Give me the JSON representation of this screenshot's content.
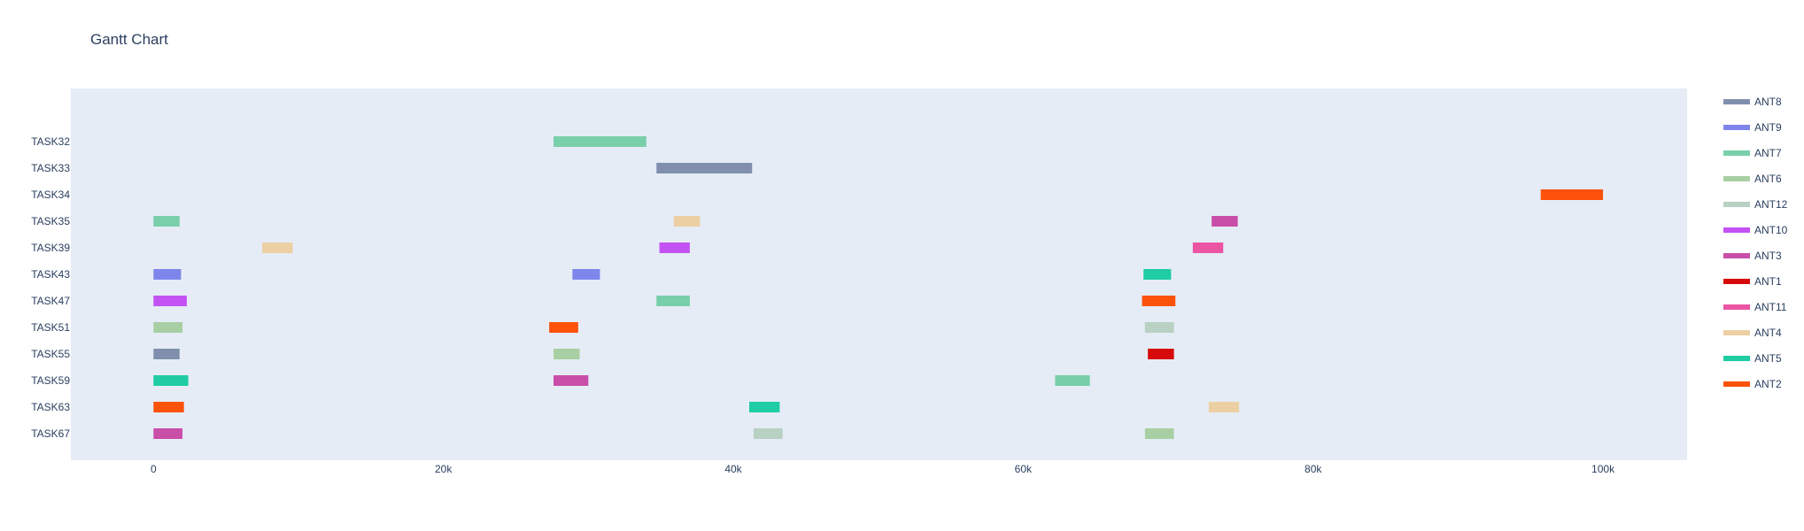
{
  "chart_data": {
    "type": "gantt",
    "title": "Gantt Chart",
    "xlabel": "",
    "ylabel": "",
    "xlim": [
      -5700,
      105800
    ],
    "x_ticks": [
      {
        "value": 0,
        "label": "0"
      },
      {
        "value": 20000,
        "label": "20k"
      },
      {
        "value": 40000,
        "label": "40k"
      },
      {
        "value": 60000,
        "label": "60k"
      },
      {
        "value": 80000,
        "label": "80k"
      },
      {
        "value": 100000,
        "label": "100k"
      }
    ],
    "grid": false,
    "background_color": "#e5ecf6",
    "legend_placement": "right",
    "categories": [
      "TASK32",
      "TASK33",
      "TASK34",
      "TASK35",
      "TASK39",
      "TASK43",
      "TASK47",
      "TASK51",
      "TASK55",
      "TASK59",
      "TASK63",
      "TASK67"
    ],
    "series": [
      {
        "name": "ANT8",
        "color": "#7f8fad"
      },
      {
        "name": "ANT9",
        "color": "#7f86eb"
      },
      {
        "name": "ANT7",
        "color": "#78cfa9"
      },
      {
        "name": "ANT6",
        "color": "#a8cfa3"
      },
      {
        "name": "ANT12",
        "color": "#b8d1c2"
      },
      {
        "name": "ANT10",
        "color": "#c352f2"
      },
      {
        "name": "ANT3",
        "color": "#c94ea8"
      },
      {
        "name": "ANT1",
        "color": "#d60a0a"
      },
      {
        "name": "ANT11",
        "color": "#eb55a3"
      },
      {
        "name": "ANT4",
        "color": "#ecd0a3"
      },
      {
        "name": "ANT5",
        "color": "#1fcca3"
      },
      {
        "name": "ANT2",
        "color": "#fc520a"
      }
    ],
    "tasks": [
      {
        "task": "TASK32",
        "resource": "ANT7",
        "start": 27600,
        "end": 34000
      },
      {
        "task": "TASK33",
        "resource": "ANT8",
        "start": 34700,
        "end": 41300
      },
      {
        "task": "TASK34",
        "resource": "ANT2",
        "start": 95700,
        "end": 100000
      },
      {
        "task": "TASK35",
        "resource": "ANT7",
        "start": 0,
        "end": 1800
      },
      {
        "task": "TASK35",
        "resource": "ANT4",
        "start": 35900,
        "end": 37700
      },
      {
        "task": "TASK35",
        "resource": "ANT3",
        "start": 73000,
        "end": 74800
      },
      {
        "task": "TASK39",
        "resource": "ANT4",
        "start": 7500,
        "end": 9600
      },
      {
        "task": "TASK39",
        "resource": "ANT10",
        "start": 34900,
        "end": 37000
      },
      {
        "task": "TASK39",
        "resource": "ANT11",
        "start": 71700,
        "end": 73800
      },
      {
        "task": "TASK43",
        "resource": "ANT9",
        "start": 0,
        "end": 1900
      },
      {
        "task": "TASK43",
        "resource": "ANT9",
        "start": 28900,
        "end": 30800
      },
      {
        "task": "TASK43",
        "resource": "ANT5",
        "start": 68300,
        "end": 70200
      },
      {
        "task": "TASK47",
        "resource": "ANT10",
        "start": 0,
        "end": 2300
      },
      {
        "task": "TASK47",
        "resource": "ANT7",
        "start": 34700,
        "end": 37000
      },
      {
        "task": "TASK47",
        "resource": "ANT2",
        "start": 68200,
        "end": 70500
      },
      {
        "task": "TASK51",
        "resource": "ANT6",
        "start": 0,
        "end": 2000
      },
      {
        "task": "TASK51",
        "resource": "ANT2",
        "start": 27300,
        "end": 29300
      },
      {
        "task": "TASK51",
        "resource": "ANT12",
        "start": 68400,
        "end": 70400
      },
      {
        "task": "TASK55",
        "resource": "ANT8",
        "start": 0,
        "end": 1800
      },
      {
        "task": "TASK55",
        "resource": "ANT6",
        "start": 27600,
        "end": 29400
      },
      {
        "task": "TASK55",
        "resource": "ANT1",
        "start": 68600,
        "end": 70400
      },
      {
        "task": "TASK59",
        "resource": "ANT5",
        "start": 0,
        "end": 2400
      },
      {
        "task": "TASK59",
        "resource": "ANT3",
        "start": 27600,
        "end": 30000
      },
      {
        "task": "TASK59",
        "resource": "ANT7",
        "start": 62200,
        "end": 64600
      },
      {
        "task": "TASK63",
        "resource": "ANT2",
        "start": 0,
        "end": 2100
      },
      {
        "task": "TASK63",
        "resource": "ANT5",
        "start": 41100,
        "end": 43200
      },
      {
        "task": "TASK63",
        "resource": "ANT4",
        "start": 72800,
        "end": 74900
      },
      {
        "task": "TASK67",
        "resource": "ANT3",
        "start": 0,
        "end": 2000
      },
      {
        "task": "TASK67",
        "resource": "ANT12",
        "start": 41400,
        "end": 43400
      },
      {
        "task": "TASK67",
        "resource": "ANT6",
        "start": 68400,
        "end": 70400
      }
    ]
  }
}
